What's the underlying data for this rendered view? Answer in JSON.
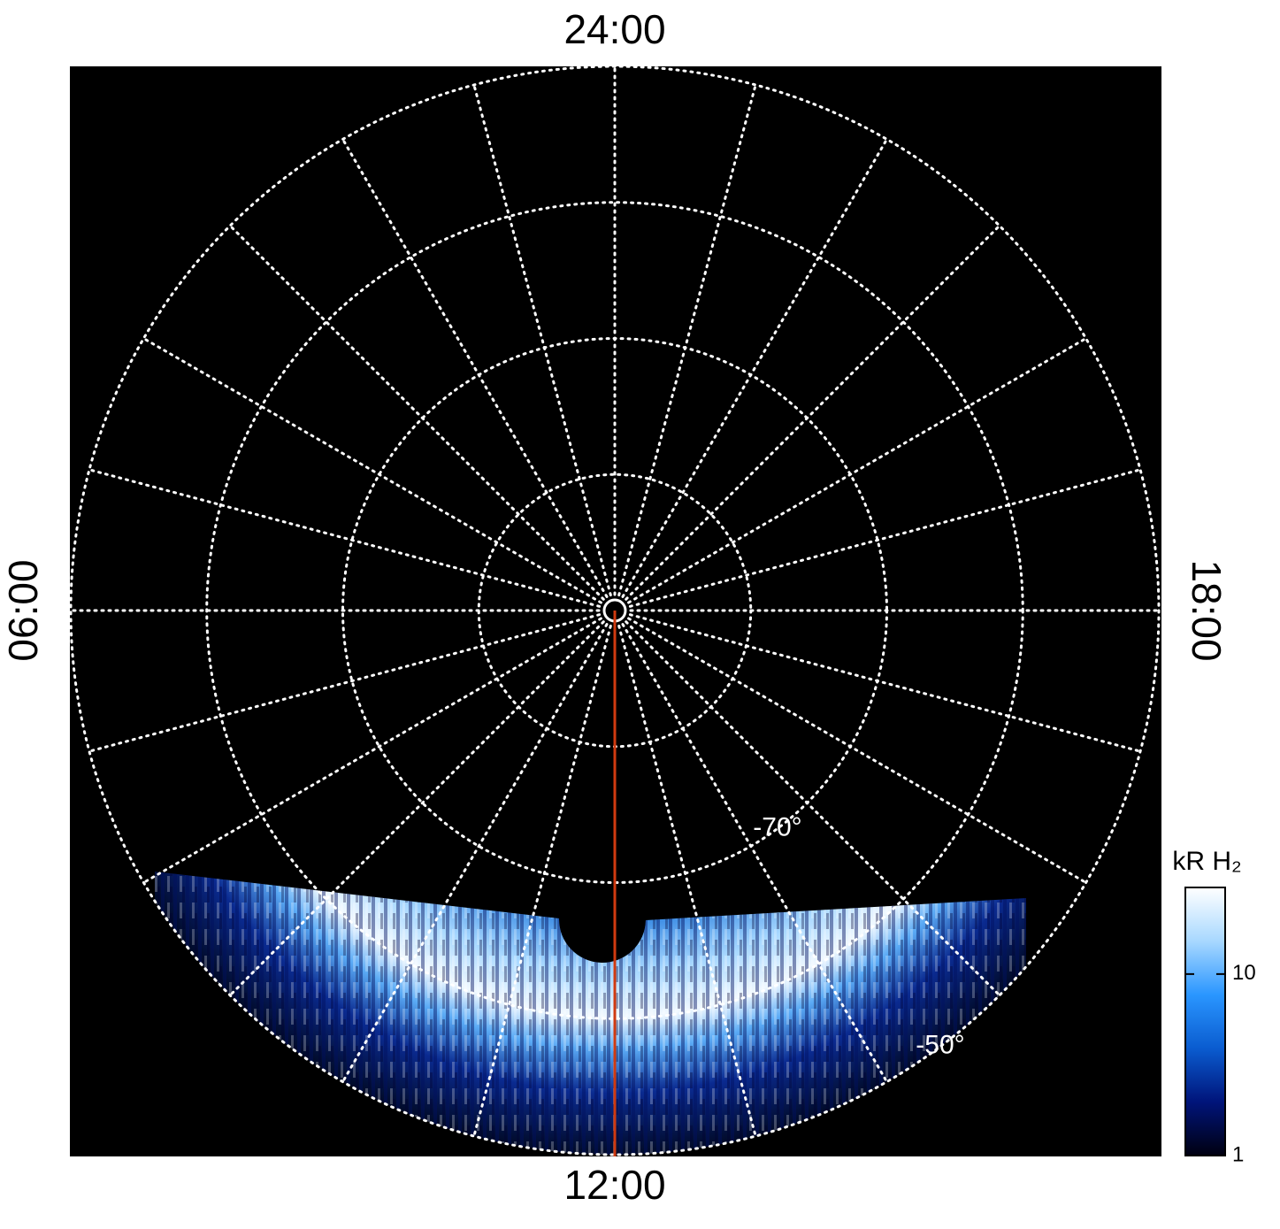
{
  "chart_data": {
    "type": "polar-map",
    "theta_ticks": [
      {
        "value": 0,
        "label": "24:00"
      },
      {
        "value": 6,
        "label": "06:00"
      },
      {
        "value": 12,
        "label": "12:00"
      },
      {
        "value": 18,
        "label": "18:00"
      }
    ],
    "hour_grid": [
      0,
      1,
      2,
      3,
      4,
      5,
      6,
      7,
      8,
      9,
      10,
      11,
      12,
      13,
      14,
      15,
      16,
      17,
      18,
      19,
      20,
      21,
      22,
      23
    ],
    "rlim": [
      -90,
      -50
    ],
    "rgrid": [
      -80,
      -70,
      -60,
      -50
    ],
    "rtick_labels": [
      {
        "value": -70,
        "label": "-70°"
      },
      {
        "value": -50,
        "label": "-50°"
      }
    ],
    "highlight_meridian": {
      "value": 12,
      "color": "#d03a10"
    },
    "colorbar": {
      "title": "kR H₂",
      "scale": "log",
      "clim": [
        1,
        30
      ],
      "cticks": [
        1,
        10
      ],
      "colormap": [
        "#000010",
        "#00147a",
        "#0a5cd0",
        "#2a96ff",
        "#a8d8ff",
        "#ffffff"
      ]
    }
  }
}
